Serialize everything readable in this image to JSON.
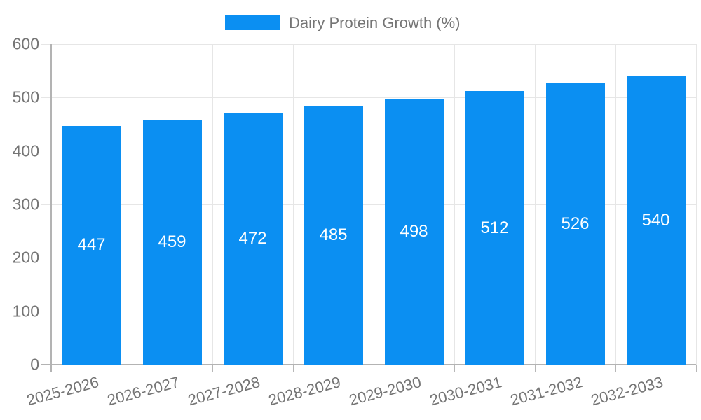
{
  "legend": {
    "label": "Dairy Protein Growth (%)"
  },
  "chart_data": {
    "type": "bar",
    "title": "Dairy Protein Growth (%)",
    "categories": [
      "2025-2026",
      "2026-2027",
      "2027-2028",
      "2028-2029",
      "2029-2030",
      "2030-2031",
      "2031-2032",
      "2032-2033"
    ],
    "values": [
      447,
      459,
      472,
      485,
      498,
      512,
      526,
      540
    ],
    "value_labels": [
      "447",
      "459",
      "472",
      "485",
      "498",
      "512",
      "526",
      "540"
    ],
    "xlabel": "",
    "ylabel": "",
    "ylim": [
      0,
      600
    ],
    "yticks": [
      0,
      100,
      200,
      300,
      400,
      500,
      600
    ],
    "grid": true,
    "legend_position": "top",
    "bar_color": "#0b8ff2",
    "value_label_color": "#ffffff",
    "tick_label_color": "#757575",
    "gridline_color": "#e6e6e6",
    "axis_line_color": "#b3b3b3"
  }
}
